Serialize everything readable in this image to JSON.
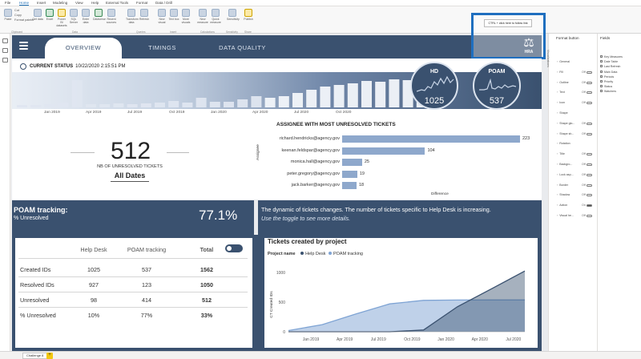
{
  "ribbon": {
    "tabs": [
      "File",
      "Home",
      "Insert",
      "Modeling",
      "View",
      "Help",
      "External Tools",
      "Format",
      "Data / Drill"
    ],
    "small_buttons": [
      "Cut",
      "Copy",
      "Format painter"
    ],
    "items": [
      "Paste",
      "Get data",
      "Excel",
      "Power BI datasets",
      "SQL Server",
      "Enter data",
      "Dataverse",
      "Recent sources",
      "Transform data",
      "Refresh",
      "New visual",
      "Text box",
      "More visuals",
      "New measure",
      "Quick measure",
      "Sensitivity",
      "Publish"
    ],
    "groups": [
      "Clipboard",
      "Data",
      "Queries",
      "Insert",
      "Calculations",
      "Sensitivity",
      "Share"
    ]
  },
  "header": {
    "tabs": [
      "OVERVIEW",
      "TIMINGS",
      "DATA QUALITY"
    ],
    "active_tab": "OVERVIEW",
    "tooltip": "CTRL + click here to follow link",
    "logo_text": "HRA"
  },
  "status": {
    "label": "CURRENT STATUS",
    "timestamp": "10/22/2020 2:15:51 PM",
    "timeline_ticks": [
      "Jan 2019",
      "Apr 2019",
      "Jul 2019",
      "Oct 2019",
      "Jan 2020",
      "Apr 2020",
      "Jul 2020",
      "Oct 2020"
    ]
  },
  "kpis": {
    "hd": {
      "label": "HD",
      "value": "1025"
    },
    "poam": {
      "label": "POAM",
      "value": "537"
    }
  },
  "unresolved": {
    "count": "512",
    "caption": "NB OF UNRESOLVED TICKETS",
    "filter": "All Dates"
  },
  "assignee_chart": {
    "title": "ASSIGNEE WITH MOST UNRESOLVED TICKETS",
    "y_label": "Assignee",
    "x_label": "Difference",
    "max": 223,
    "rows": [
      {
        "name": "richard.hendricks@agency.gov",
        "value": "223",
        "frac": 1.0
      },
      {
        "name": "keenan.feldspar@agency.gov",
        "value": "104",
        "frac": 0.466
      },
      {
        "name": "monica.hall@agency.gov",
        "value": "25",
        "frac": 0.112
      },
      {
        "name": "peter.gregory@agency.gov",
        "value": "19",
        "frac": 0.085
      },
      {
        "name": "jack.barker@agency.gov",
        "value": "18",
        "frac": 0.081
      }
    ]
  },
  "poam_tracking": {
    "title": "POAM tracking:",
    "subtitle": "% Unresolved",
    "percent": "77.1%",
    "note_line1": "The dynamic of tickets changes. The number of tickets specific to Help Desk is increasing.",
    "note_line2": "Use the toggle to see more details."
  },
  "table": {
    "headers": [
      "",
      "Help Desk",
      "POAM tracking",
      "Total"
    ],
    "rows": [
      [
        "Created IDs",
        "1025",
        "537",
        "1562"
      ],
      [
        "Resolved IDs",
        "927",
        "123",
        "1050"
      ],
      [
        "Unresolved",
        "98",
        "414",
        "512"
      ],
      [
        "% Unresolved",
        "10%",
        "77%",
        "33%"
      ]
    ]
  },
  "chart_data": {
    "type": "area",
    "title": "Tickets created by project",
    "legend_title": "Project name",
    "ylabel": "CT Created IDs",
    "ylim": [
      0,
      1000
    ],
    "yticks": [
      "0",
      "500",
      "1000"
    ],
    "xticks": [
      "Jan 2019",
      "Apr 2019",
      "Jul 2019",
      "Oct 2019",
      "Jan 2020",
      "Apr 2020",
      "Jul 2020"
    ],
    "x": [
      "Jan 2019",
      "Apr 2019",
      "Jul 2019",
      "Oct 2019",
      "Jan 2020",
      "Apr 2020",
      "Jul 2020",
      "Oct 2020"
    ],
    "series": [
      {
        "name": "Help Desk",
        "color": "#3a516f",
        "values": [
          0,
          0,
          0,
          0,
          30,
          420,
          720,
          1025
        ]
      },
      {
        "name": "POAM tracking",
        "color": "#7fa4d4",
        "values": [
          20,
          120,
          300,
          470,
          530,
          535,
          537,
          537
        ]
      }
    ]
  },
  "format_pane": {
    "title": "Format button",
    "rows": [
      {
        "label": "General",
        "val": "",
        "toggle": false,
        "show_toggle": false
      },
      {
        "label": "Fill",
        "val": "Off",
        "toggle": false,
        "show_toggle": true
      },
      {
        "label": "Outline",
        "val": "Off",
        "toggle": false,
        "show_toggle": true
      },
      {
        "label": "Text",
        "val": "Off",
        "toggle": false,
        "show_toggle": true
      },
      {
        "label": "Icon",
        "val": "Off",
        "toggle": false,
        "show_toggle": true
      },
      {
        "label": "Shape",
        "val": "",
        "toggle": false,
        "show_toggle": false
      },
      {
        "label": "Shape glo...",
        "val": "Off",
        "toggle": false,
        "show_toggle": true
      },
      {
        "label": "Shape sh...",
        "val": "Off",
        "toggle": false,
        "show_toggle": true
      },
      {
        "label": "Rotation",
        "val": "",
        "toggle": false,
        "show_toggle": false
      },
      {
        "label": "Title",
        "val": "Off",
        "toggle": false,
        "show_toggle": true
      },
      {
        "label": "Backgro...",
        "val": "Off",
        "toggle": false,
        "show_toggle": true
      },
      {
        "label": "Lock asp...",
        "val": "Off",
        "toggle": false,
        "show_toggle": true
      },
      {
        "label": "Border",
        "val": "Off",
        "toggle": false,
        "show_toggle": true
      },
      {
        "label": "Shadow",
        "val": "Off",
        "toggle": false,
        "show_toggle": true
      },
      {
        "label": "Action",
        "val": "On",
        "toggle": true,
        "show_toggle": true
      },
      {
        "label": "Visual he...",
        "val": "Off",
        "toggle": false,
        "show_toggle": true
      }
    ]
  },
  "fields_pane": {
    "title": "Fields",
    "items": [
      "Key Measures",
      "Date Table",
      "Last Refresh",
      "Main Data",
      "Periods",
      "Priority",
      "Status",
      "Watchers"
    ]
  },
  "side_label": "Visualizations",
  "page_tab": "Challenge 8",
  "add_page": "+"
}
